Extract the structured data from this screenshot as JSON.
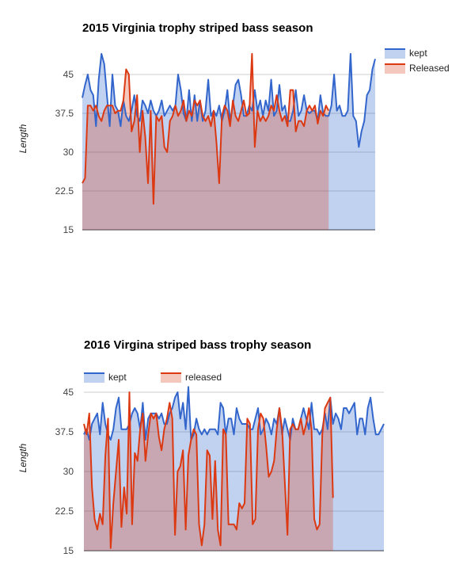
{
  "chart_data": [
    {
      "type": "area",
      "title": "2015 Virginia trophy striped bass season",
      "xlabel": "",
      "ylabel": "Length",
      "ylim": [
        15,
        45
      ],
      "yticks": [
        "45",
        "37.5",
        "30",
        "22.5",
        "15"
      ],
      "yticks_values": [
        45,
        37.5,
        30,
        22.5,
        15
      ],
      "grid": true,
      "legend_position": "right",
      "series": [
        {
          "name": "kept",
          "color": "#3366cc",
          "values": [
            40.5,
            43,
            45,
            42,
            41,
            35,
            44,
            49,
            47,
            41,
            35,
            45,
            39,
            38,
            35,
            40,
            37,
            36,
            38,
            41,
            37,
            36,
            40,
            39,
            37.5,
            40,
            38,
            37,
            38,
            40,
            37,
            38,
            39,
            38,
            39,
            45,
            42,
            37.5,
            36,
            42,
            36,
            41,
            36,
            40,
            36,
            38,
            44,
            37,
            38,
            37,
            39,
            36,
            38,
            42,
            36,
            39,
            43,
            44,
            41,
            37,
            37,
            39,
            38,
            42,
            38,
            40,
            37,
            40,
            38,
            44,
            37,
            38,
            43,
            38,
            39,
            36,
            36,
            38,
            42,
            37,
            38,
            41,
            38,
            37.5,
            38,
            38,
            36,
            41,
            37.5,
            37,
            37,
            39,
            45,
            38,
            39,
            37,
            37,
            38,
            49,
            37,
            36,
            31,
            34,
            36,
            41,
            42,
            46,
            48
          ]
        },
        {
          "name": "Released",
          "color": "#dc3912",
          "values": [
            24,
            25,
            39,
            39,
            38,
            39,
            37,
            36,
            38,
            39,
            39,
            39,
            37.5,
            38,
            38,
            40,
            46,
            45,
            34,
            36,
            41,
            30,
            38,
            33,
            24,
            38,
            20,
            37,
            36,
            37,
            31,
            30,
            36,
            37,
            39,
            37,
            38,
            40,
            36,
            38,
            37,
            40,
            39,
            40,
            37,
            36,
            37,
            35,
            38,
            32,
            24,
            37,
            39,
            38,
            35,
            40,
            37,
            36,
            38,
            40,
            37,
            37.5,
            49,
            31,
            38,
            36,
            37,
            36,
            37,
            39,
            38,
            41,
            38,
            36,
            37,
            35,
            42,
            42,
            34,
            36,
            36,
            35,
            38,
            39,
            38,
            39,
            35.5,
            38,
            37,
            39,
            38
          ]
        }
      ]
    },
    {
      "type": "area",
      "title": "2016 Virgina striped bass trophy season",
      "xlabel": "",
      "ylabel": "Length",
      "ylim": [
        15,
        45
      ],
      "yticks": [
        "45",
        "37.5",
        "30",
        "22.5",
        "15"
      ],
      "yticks_values": [
        45,
        37.5,
        30,
        22.5,
        15
      ],
      "grid": true,
      "legend_position": "top",
      "series": [
        {
          "name": "kept",
          "color": "#3366cc",
          "values": [
            37,
            38,
            36,
            39,
            40,
            41,
            37,
            43,
            39,
            37,
            36,
            38,
            42,
            44,
            38,
            38,
            38,
            39,
            41,
            42,
            41,
            38,
            43,
            36,
            40,
            41,
            41,
            41,
            40,
            41,
            39,
            39,
            41,
            42,
            44,
            45,
            40,
            43,
            38,
            46,
            36,
            37,
            40,
            38,
            37,
            38,
            37,
            38,
            38,
            38,
            37,
            43,
            42,
            37,
            40,
            40,
            37,
            42,
            40,
            39,
            39,
            39,
            38,
            38,
            40,
            42,
            37,
            38,
            40,
            39,
            37,
            40,
            39,
            42,
            37,
            40,
            38,
            36,
            40,
            38,
            38,
            40,
            42,
            40,
            38,
            43,
            38,
            38,
            37,
            38,
            41,
            38,
            44,
            39,
            41,
            40,
            38,
            42,
            42,
            41,
            42,
            43,
            37,
            40,
            40,
            37,
            42,
            44,
            40,
            37,
            37,
            38,
            39
          ]
        },
        {
          "name": "released",
          "color": "#dc3912",
          "values": [
            39,
            37,
            41,
            27,
            21,
            19,
            22,
            20,
            33,
            40,
            15.5,
            24,
            30,
            36,
            19.5,
            27,
            22,
            45,
            20,
            33.5,
            32,
            38,
            41,
            32,
            37,
            41,
            40,
            41,
            36.5,
            34,
            38,
            40,
            43,
            40,
            18,
            30,
            31,
            34,
            19,
            33,
            36,
            38,
            37,
            20,
            16,
            20,
            34,
            33,
            21,
            32,
            19,
            16,
            38,
            37,
            20,
            20,
            20,
            19,
            24,
            23,
            24,
            40,
            39,
            20,
            21,
            38,
            41,
            40,
            35,
            29,
            30,
            32,
            38,
            42,
            38,
            28,
            18,
            38,
            39,
            38,
            38,
            40,
            37,
            39,
            42,
            38,
            21,
            19,
            20,
            37,
            42,
            43,
            44,
            25
          ]
        }
      ]
    }
  ]
}
